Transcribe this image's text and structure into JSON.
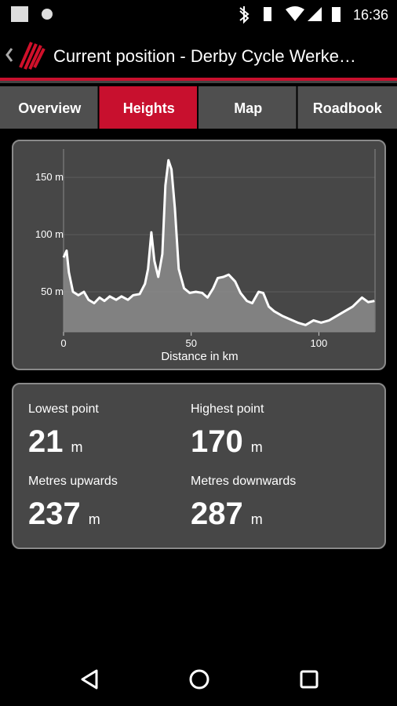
{
  "status_bar": {
    "time": "16:36"
  },
  "action_bar": {
    "title": "Current position - Derby Cycle Werke…"
  },
  "tabs": [
    {
      "label": "Overview",
      "selected": false
    },
    {
      "label": "Heights",
      "selected": true
    },
    {
      "label": "Map",
      "selected": false
    },
    {
      "label": "Roadbook",
      "selected": false
    }
  ],
  "chart_data": {
    "type": "area",
    "xlabel": "Distance in km",
    "x": [
      0,
      1.2,
      2.1,
      3.7,
      5.8,
      8,
      9.8,
      12,
      14.1,
      16,
      18.1,
      20.6,
      22.7,
      25.2,
      27.3,
      29.8,
      31.9,
      33.1,
      34.4,
      35.6,
      37.1,
      38.7,
      39.9,
      41.1,
      42.3,
      43.6,
      45.1,
      47.2,
      49.4,
      51.8,
      54.3,
      56.4,
      58.6,
      60.4,
      62.6,
      64.7,
      67.2,
      69.3,
      71.8,
      73.9,
      76.4,
      78.2,
      80.4,
      82.5,
      85.6,
      88.7,
      91.7,
      94.8,
      97.9,
      100.9,
      104,
      107.1,
      110.1,
      113.2,
      116.9,
      119.3,
      121.8
    ],
    "values": [
      80,
      86,
      67,
      50,
      47,
      50,
      43,
      40,
      45,
      42,
      46,
      43,
      46,
      43,
      47,
      48,
      57,
      70,
      102,
      77,
      63,
      83,
      143,
      165,
      157,
      123,
      70,
      53,
      49,
      50,
      49,
      45,
      53,
      62,
      63,
      65,
      59,
      49,
      42,
      40,
      50,
      49,
      37,
      33,
      29,
      26,
      23,
      21,
      25,
      23,
      25,
      29,
      33,
      37,
      45,
      41,
      42
    ],
    "xlim": [
      0,
      122
    ],
    "ylim": [
      15,
      170
    ],
    "xticks": [
      0,
      50,
      100
    ],
    "yticks": [
      {
        "value": 50,
        "label": "50 m"
      },
      {
        "value": 100,
        "label": "100 m"
      },
      {
        "value": 150,
        "label": "150 m"
      }
    ],
    "color": "#ffffff",
    "fill_color": "#8c8c8c",
    "grid": true
  },
  "stats": [
    {
      "label": "Lowest point",
      "value": 21,
      "unit": "m"
    },
    {
      "label": "Highest point",
      "value": 170,
      "unit": "m"
    },
    {
      "label": "Metres upwards",
      "value": 237,
      "unit": "m"
    },
    {
      "label": "Metres downwards",
      "value": 287,
      "unit": "m"
    }
  ]
}
